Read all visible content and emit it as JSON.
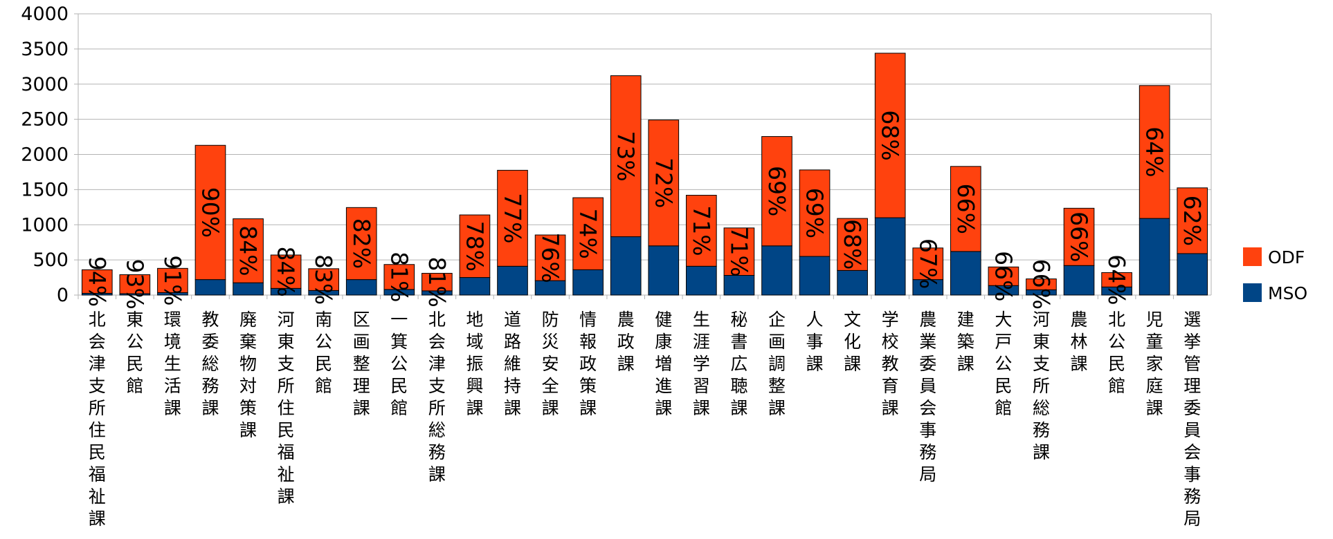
{
  "chart_data": {
    "type": "bar",
    "stacked": true,
    "ylim": [
      0,
      4000
    ],
    "yticks": [
      0,
      500,
      1000,
      1500,
      2000,
      2500,
      3000,
      3500,
      4000
    ],
    "grid": true,
    "legend_position": "right",
    "categories": [
      "北会津支所住民福祉課",
      "東公民館",
      "環境生活課",
      "教委総務課",
      "廃棄物対策課",
      "河東支所住民福祉課",
      "南公民館",
      "区画整理課",
      "一箕公民館",
      "北会津支所総務課",
      "地域振興課",
      "道路維持課",
      "防災安全課",
      "情報政策課",
      "農政課",
      "健康増進課",
      "生涯学習課",
      "秘書広聴課",
      "企画調整課",
      "人事課",
      "文化課",
      "学校教育課",
      "農業委員会事務局",
      "建築課",
      "大戸公民館",
      "河東支所総務課",
      "農林課",
      "北公民館",
      "児童家庭課",
      "選挙管理委員会事務局"
    ],
    "series": [
      {
        "name": "MSO",
        "color": "#004586",
        "values": [
          25,
          20,
          35,
          220,
          175,
          95,
          65,
          220,
          80,
          60,
          250,
          410,
          205,
          360,
          830,
          700,
          410,
          280,
          700,
          550,
          350,
          1100,
          220,
          620,
          135,
          75,
          420,
          115,
          1090,
          590
        ]
      },
      {
        "name": "ODF",
        "color": "#ff420e",
        "values": [
          335,
          270,
          345,
          1910,
          910,
          475,
          310,
          1025,
          355,
          250,
          890,
          1365,
          650,
          1025,
          2290,
          1790,
          1010,
          675,
          1555,
          1230,
          740,
          2340,
          450,
          1210,
          265,
          155,
          815,
          205,
          1890,
          935
        ]
      }
    ],
    "percent_labels": [
      "94%",
      "93%",
      "91%",
      "90%",
      "84%",
      "84%",
      "83%",
      "82%",
      "81%",
      "81%",
      "78%",
      "77%",
      "76%",
      "74%",
      "73%",
      "72%",
      "71%",
      "71%",
      "69%",
      "69%",
      "68%",
      "68%",
      "67%",
      "66%",
      "66%",
      "66%",
      "66%",
      "64%",
      "64%",
      "62%"
    ]
  }
}
